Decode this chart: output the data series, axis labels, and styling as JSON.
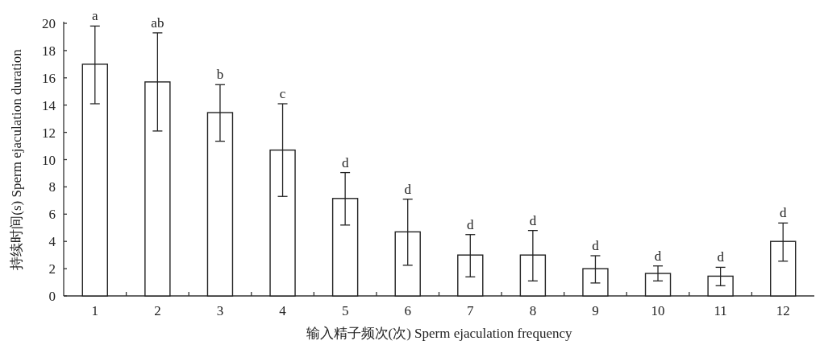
{
  "chart_data": {
    "type": "bar",
    "xlabel": "输入精子频次(次) Sperm ejaculation frequency",
    "ylabel": "持续时间(s) Sperm ejaculation duration",
    "categories": [
      "1",
      "2",
      "3",
      "4",
      "5",
      "6",
      "7",
      "8",
      "9",
      "10",
      "11",
      "12"
    ],
    "values": [
      17.0,
      15.7,
      13.45,
      10.7,
      7.15,
      4.7,
      3.0,
      3.0,
      2.0,
      1.65,
      1.45,
      4.0
    ],
    "errors": [
      [
        14.1,
        19.8
      ],
      [
        12.1,
        19.3
      ],
      [
        11.35,
        15.5
      ],
      [
        7.3,
        14.1
      ],
      [
        5.2,
        9.05
      ],
      [
        2.25,
        7.1
      ],
      [
        1.4,
        4.5
      ],
      [
        1.1,
        4.8
      ],
      [
        0.95,
        2.95
      ],
      [
        1.1,
        2.2
      ],
      [
        0.75,
        2.1
      ],
      [
        2.55,
        5.35
      ]
    ],
    "color": "#ffffff",
    "ylim": [
      0,
      20
    ],
    "yticks": [
      0,
      2,
      4,
      6,
      8,
      10,
      12,
      14,
      16,
      18,
      20
    ],
    "grid": false,
    "annotations": [
      {
        "text": "a",
        "x": "1",
        "y": 19.8
      },
      {
        "text": "ab",
        "x": "2",
        "y": 19.3
      },
      {
        "text": "b",
        "x": "3",
        "y": 15.5
      },
      {
        "text": "c",
        "x": "4",
        "y": 14.1
      },
      {
        "text": "d",
        "x": "5",
        "y": 9.05
      },
      {
        "text": "d",
        "x": "6",
        "y": 7.1
      },
      {
        "text": "d",
        "x": "7",
        "y": 4.5
      },
      {
        "text": "d",
        "x": "8",
        "y": 4.8
      },
      {
        "text": "d",
        "x": "9",
        "y": 2.95
      },
      {
        "text": "d",
        "x": "10",
        "y": 2.2
      },
      {
        "text": "d",
        "x": "11",
        "y": 2.1
      },
      {
        "text": "d",
        "x": "12",
        "y": 5.35
      }
    ]
  }
}
